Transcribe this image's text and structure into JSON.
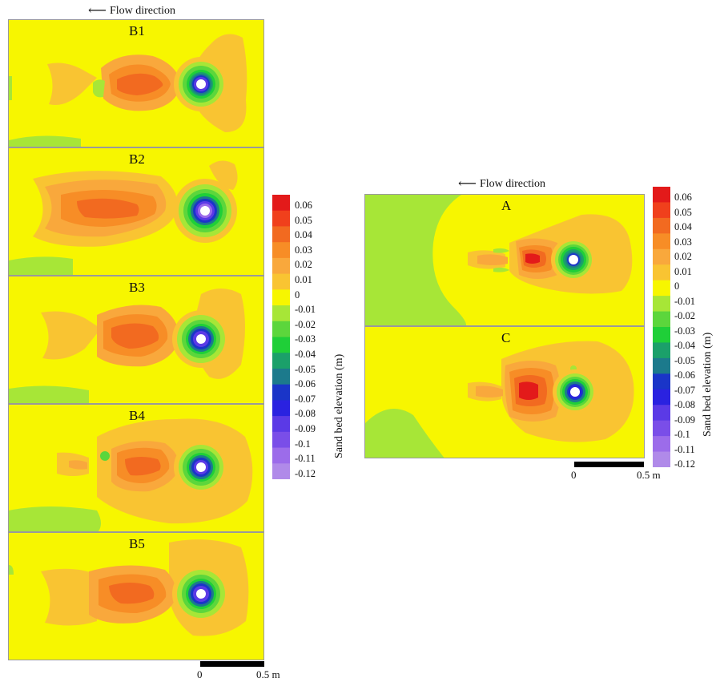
{
  "flow_label": "Flow direction",
  "left_panels": [
    "B1",
    "B2",
    "B3",
    "B4",
    "B5"
  ],
  "right_panels": [
    "A",
    "C"
  ],
  "colorbar": {
    "title": "Sand bed elevation (m)",
    "ticks": [
      "0.06",
      "0.05",
      "0.04",
      "0.03",
      "0.02",
      "0.01",
      "0",
      "-0.01",
      "-0.02",
      "-0.03",
      "-0.04",
      "-0.05",
      "-0.06",
      "-0.07",
      "-0.08",
      "-0.09",
      "-0.1",
      "-0.11",
      "-0.12"
    ],
    "colors": [
      "#e31a1a",
      "#f0401c",
      "#f26a20",
      "#f78d26",
      "#f9a83c",
      "#f9c432",
      "#f7f600",
      "#a7e637",
      "#5cd63c",
      "#1fcf38",
      "#1ba06a",
      "#1c7a8c",
      "#1a35c8",
      "#2a22e0",
      "#5b3ae6",
      "#7a4ee8",
      "#9c6cea",
      "#b08ae9"
    ]
  },
  "scale": {
    "zero": "0",
    "len": "0.5 m"
  }
}
